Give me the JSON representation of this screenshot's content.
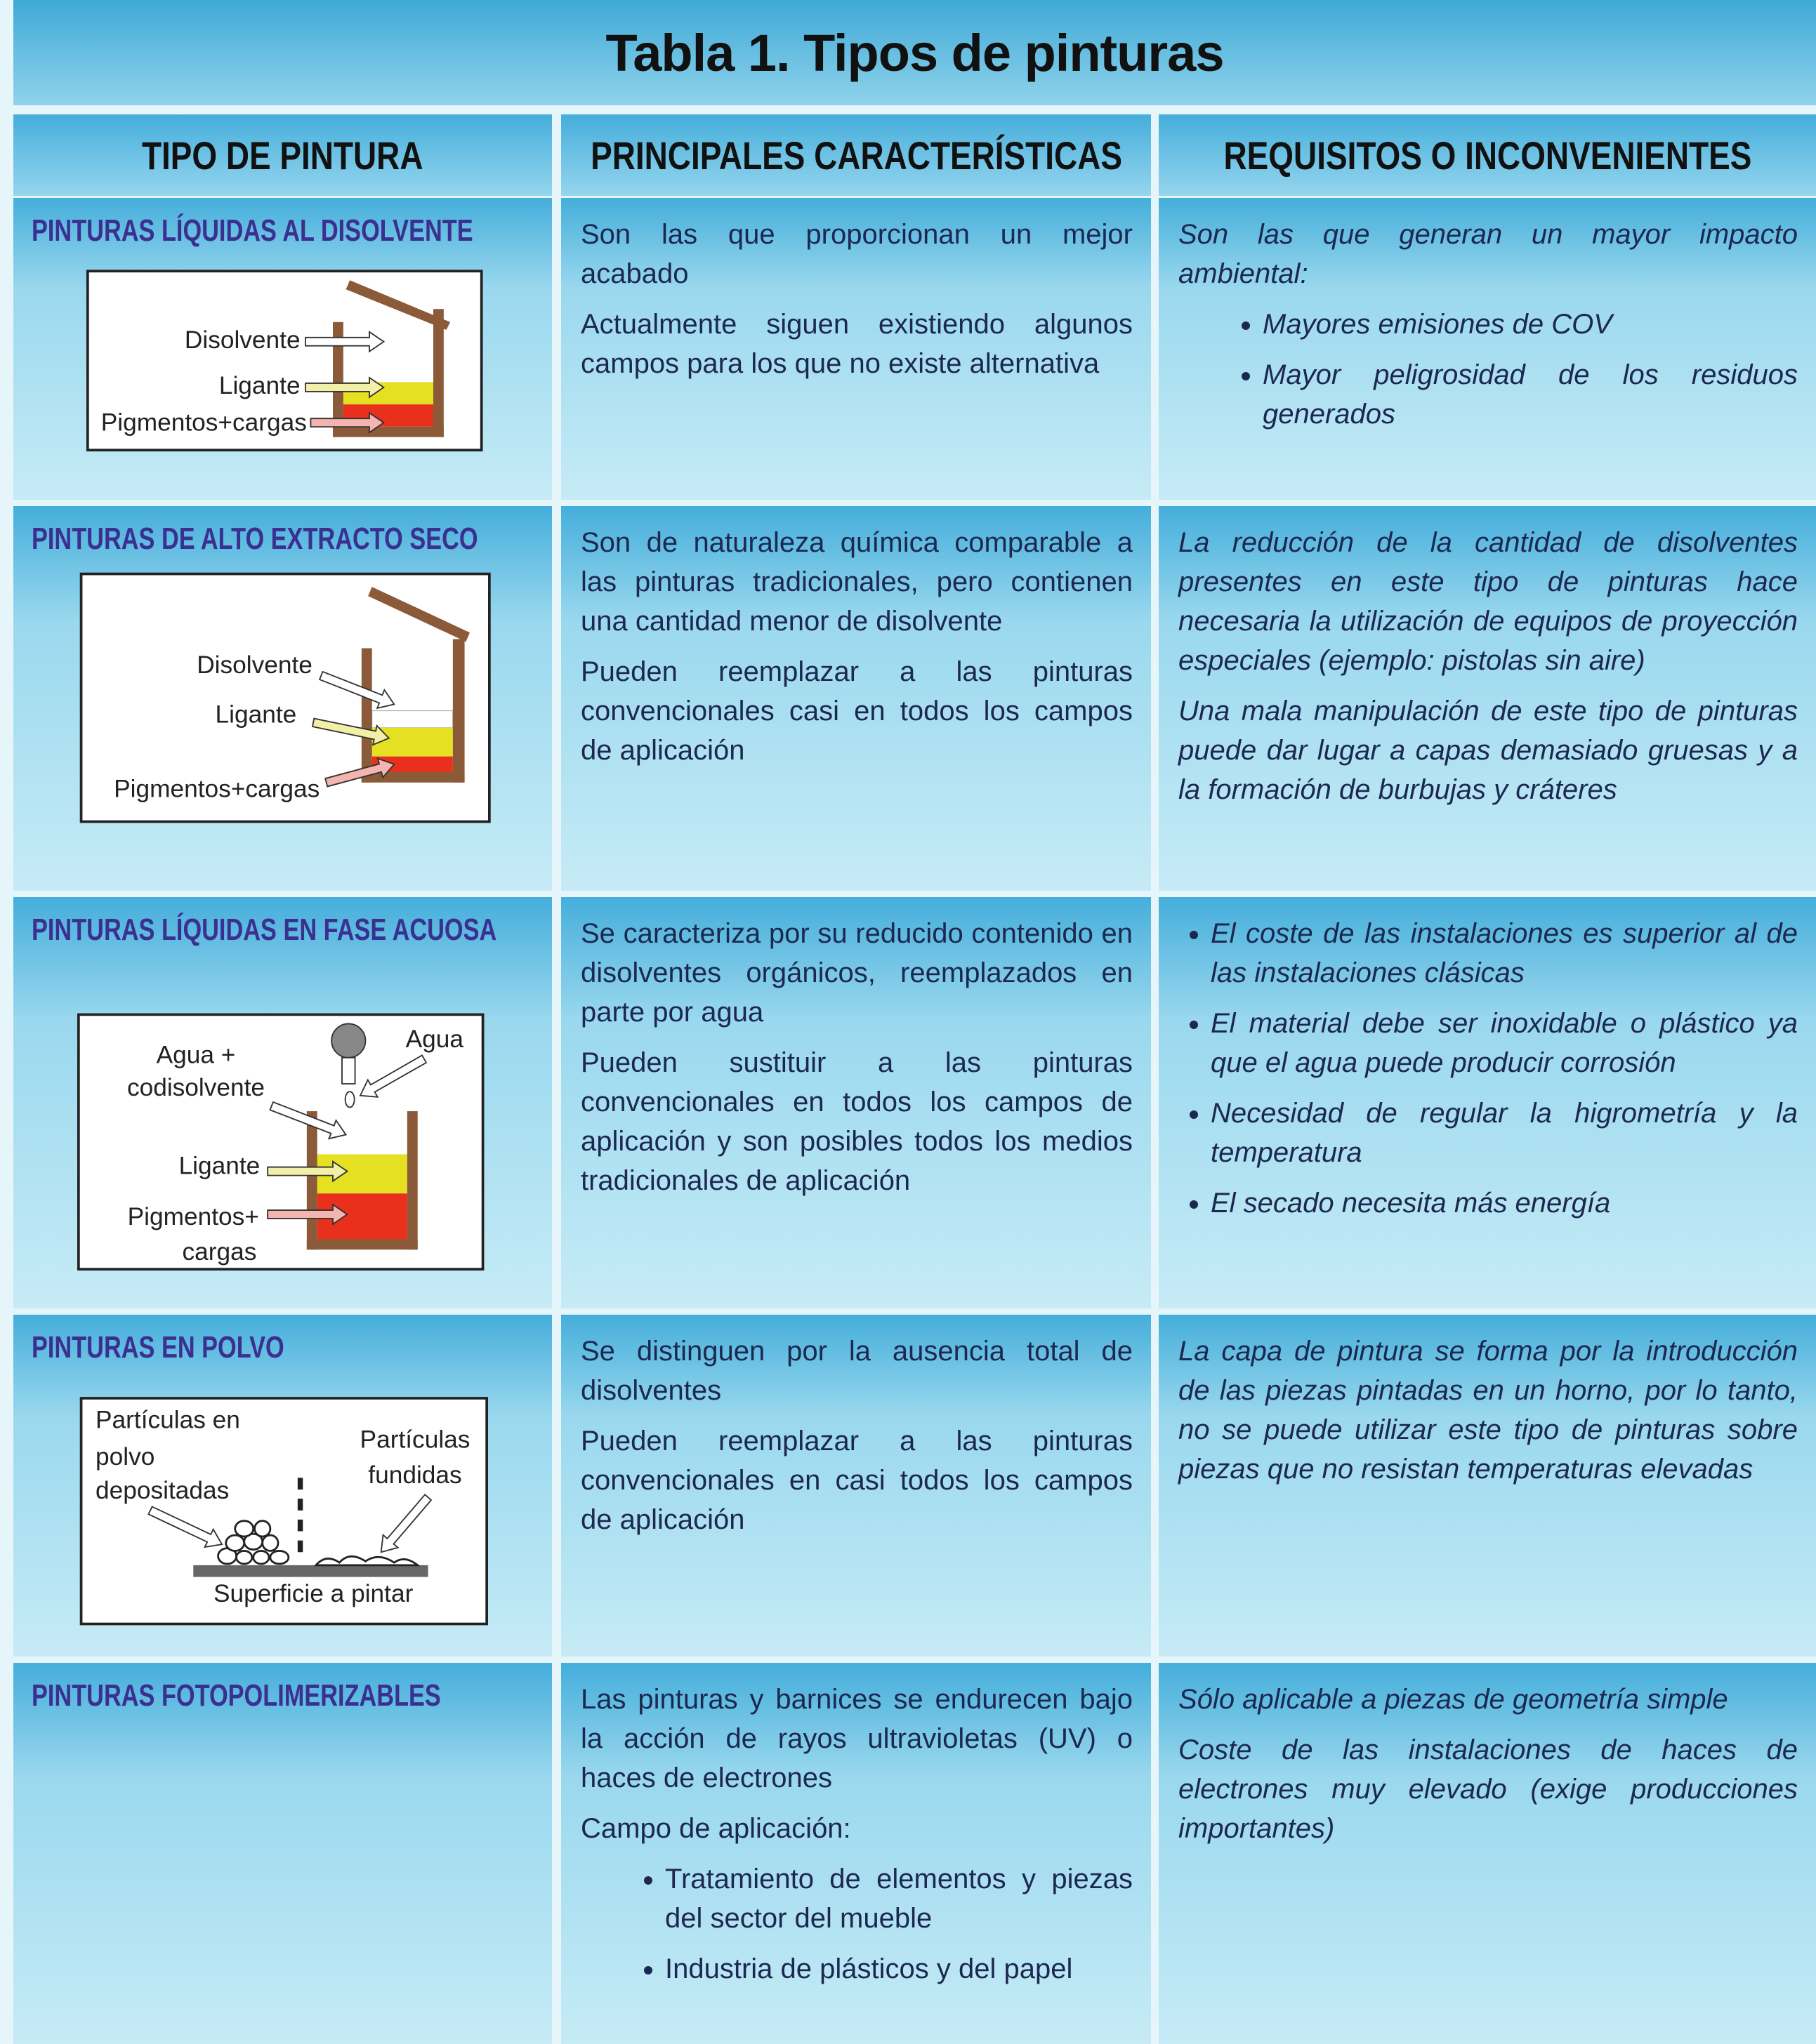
{
  "title": "Tabla 1. Tipos de pinturas",
  "table": {
    "headers": [
      "TIPO DE PINTURA",
      "PRINCIPALES CARACTERÍSTICAS",
      "REQUISITOS O INCONVENIENTES"
    ],
    "rows": [
      {
        "type": "PINTURAS LÍQUIDAS AL DISOLVENTE",
        "diagram": [
          "Disolvente",
          "Ligante",
          "Pigmentos+cargas"
        ],
        "characteristics": [
          "Son las que proporcionan un mejor acabado",
          "Actualmente siguen existiendo algunos campos para los que no existe alternativa"
        ],
        "requirements": [
          "Son las que generan un mayor impacto ambiental:"
        ],
        "requirements_list": [
          "Mayores emisiones de COV",
          "Mayor peligrosidad de los residuos generados"
        ]
      },
      {
        "type": "PINTURAS DE ALTO EXTRACTO SECO",
        "diagram": [
          "Disolvente",
          "Ligante",
          "Pigmentos+cargas"
        ],
        "characteristics": [
          "Son de naturaleza química comparable a las pinturas tradicionales, pero contienen una cantidad menor de disolvente",
          "Pueden reemplazar a las pinturas convencionales casi en todos los campos de aplicación"
        ],
        "requirements": [
          "La reducción de la cantidad de disolventes presentes en este tipo de pinturas hace necesaria la utilización de equipos de proyección especiales (ejemplo: pistolas sin aire)",
          "Una mala manipulación de este tipo de pinturas puede dar lugar a capas demasiado gruesas y a la formación de burbujas y cráteres"
        ]
      },
      {
        "type": "PINTURAS LÍQUIDAS EN FASE ACUOSA",
        "diagram": [
          "Agua +",
          "codisolvente",
          "Agua",
          "Ligante",
          "Pigmentos+",
          "cargas"
        ],
        "characteristics": [
          "Se caracteriza por su reducido contenido en disolventes orgánicos, reemplazados en parte por agua",
          "Pueden sustituir a las pinturas convencionales en todos los campos de aplicación y son posibles todos los medios tradicionales de aplicación"
        ],
        "requirements_list": [
          "El coste de las instalaciones es superior al de las instalaciones clásicas",
          "El material debe ser inoxidable o plástico ya que el agua puede producir corrosión",
          "Necesidad de regular la higrometría y la temperatura",
          "El secado necesita más energía"
        ]
      },
      {
        "type": "PINTURAS EN POLVO",
        "diagram": [
          "Partículas en",
          "polvo",
          "depositadas",
          "Partículas",
          "fundidas",
          "Superficie a pintar"
        ],
        "characteristics": [
          "Se distinguen por la ausencia total de disolventes",
          "Pueden reemplazar a las pinturas convencionales en casi todos los campos de aplicación"
        ],
        "requirements": [
          "La capa de pintura se forma por la introducción de las piezas pintadas en un horno, por lo tanto, no se puede utilizar este tipo de pinturas sobre piezas que no resistan temperaturas elevadas"
        ]
      },
      {
        "type": "PINTURAS FOTOPOLIMERIZABLES",
        "characteristics": [
          "Las pinturas y barnices se endurecen bajo la acción de rayos ultravioletas (UV) o haces de electrones",
          "Campo de aplicación:"
        ],
        "characteristics_list": [
          "Tratamiento de elementos y piezas del sector del mueble",
          "Industria de plásticos y del papel"
        ],
        "requirements": [
          "Sólo aplicable a piezas de geometría simple",
          "Coste de las instalaciones de haces de electrones muy elevado (exige producciones importantes)"
        ]
      }
    ]
  }
}
